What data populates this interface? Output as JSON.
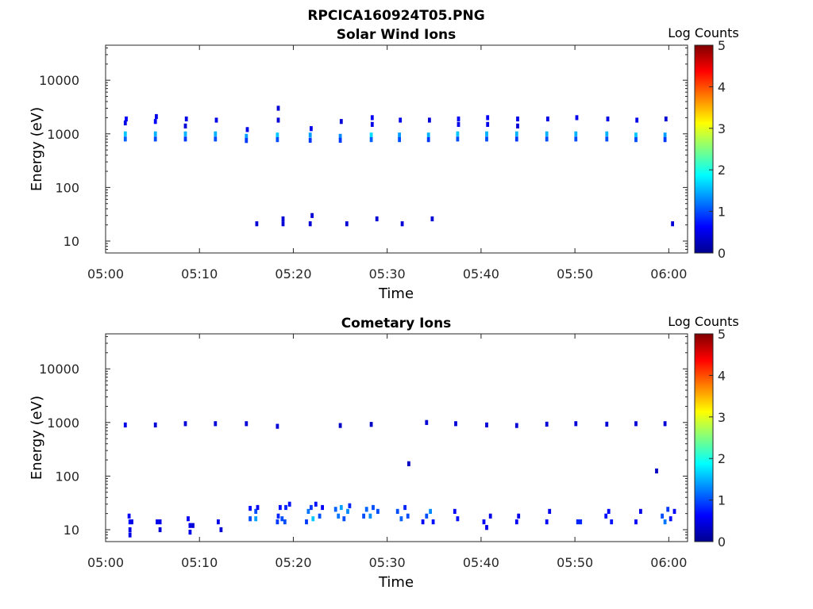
{
  "figure": {
    "title": "RPCICA160924T05.PNG"
  },
  "chart_data": [
    {
      "type": "heatmap",
      "title": "Solar Wind Ions",
      "xlabel": "Time",
      "ylabel": "Energy (eV)",
      "yscale": "log",
      "ylim": [
        6,
        45000
      ],
      "xlim_minutes": [
        0,
        62
      ],
      "x_ticks": [
        "05:00",
        "05:10",
        "05:20",
        "05:30",
        "05:40",
        "05:50",
        "06:00"
      ],
      "x_tick_minutes": [
        0,
        10,
        20,
        30,
        40,
        50,
        60
      ],
      "y_ticks": [
        "10",
        "100",
        "1000",
        "10000"
      ],
      "y_tick_values": [
        10,
        100,
        1000,
        10000
      ],
      "colorbar": {
        "label": "Log Counts",
        "range": [
          0,
          5
        ],
        "ticks": [
          "0",
          "1",
          "2",
          "3",
          "4",
          "5"
        ]
      },
      "grid": false,
      "cells": [
        [
          2.1,
          1000,
          1.6
        ],
        [
          2.1,
          800,
          1.1
        ],
        [
          2.2,
          1900,
          0.6
        ],
        [
          2.1,
          1600,
          0.5
        ],
        [
          5.3,
          1000,
          1.5
        ],
        [
          5.3,
          800,
          1.0
        ],
        [
          5.4,
          2100,
          0.5
        ],
        [
          5.3,
          1700,
          0.6
        ],
        [
          8.5,
          1000,
          1.5
        ],
        [
          8.5,
          800,
          0.9
        ],
        [
          8.6,
          1900,
          0.5
        ],
        [
          8.5,
          1400,
          0.4
        ],
        [
          11.7,
          1000,
          1.5
        ],
        [
          11.7,
          800,
          1.0
        ],
        [
          11.8,
          1800,
          0.5
        ],
        [
          15.0,
          900,
          1.4
        ],
        [
          15.0,
          750,
          0.9
        ],
        [
          15.1,
          1200,
          0.5
        ],
        [
          18.3,
          950,
          1.6
        ],
        [
          18.3,
          780,
          1.0
        ],
        [
          18.4,
          1800,
          0.4
        ],
        [
          18.4,
          3000,
          0.4
        ],
        [
          21.8,
          950,
          1.4
        ],
        [
          21.8,
          760,
          0.9
        ],
        [
          21.9,
          1250,
          0.5
        ],
        [
          25.0,
          900,
          1.3
        ],
        [
          25.0,
          760,
          0.9
        ],
        [
          25.1,
          1700,
          0.4
        ],
        [
          28.3,
          950,
          1.7
        ],
        [
          28.3,
          780,
          1.1
        ],
        [
          28.4,
          2000,
          0.6
        ],
        [
          28.4,
          1500,
          0.5
        ],
        [
          31.3,
          950,
          1.4
        ],
        [
          31.3,
          780,
          1.0
        ],
        [
          31.4,
          1800,
          0.5
        ],
        [
          34.4,
          950,
          1.5
        ],
        [
          34.4,
          780,
          0.9
        ],
        [
          34.5,
          1800,
          0.4
        ],
        [
          37.5,
          1000,
          1.6
        ],
        [
          37.5,
          800,
          1.0
        ],
        [
          37.6,
          1900,
          0.6
        ],
        [
          37.6,
          1500,
          0.5
        ],
        [
          40.6,
          1000,
          1.5
        ],
        [
          40.6,
          800,
          1.0
        ],
        [
          40.7,
          2000,
          0.6
        ],
        [
          40.7,
          1500,
          0.5
        ],
        [
          43.8,
          1000,
          1.5
        ],
        [
          43.8,
          800,
          0.9
        ],
        [
          43.9,
          1900,
          0.5
        ],
        [
          43.9,
          1400,
          0.4
        ],
        [
          47.0,
          1000,
          1.5
        ],
        [
          47.0,
          800,
          1.0
        ],
        [
          47.1,
          1900,
          0.5
        ],
        [
          50.1,
          1000,
          1.5
        ],
        [
          50.1,
          800,
          1.0
        ],
        [
          50.2,
          2000,
          0.5
        ],
        [
          53.4,
          1000,
          1.5
        ],
        [
          53.4,
          800,
          1.0
        ],
        [
          53.5,
          1900,
          0.5
        ],
        [
          56.5,
          950,
          1.6
        ],
        [
          56.5,
          780,
          1.0
        ],
        [
          56.6,
          1800,
          0.5
        ],
        [
          59.6,
          950,
          1.4
        ],
        [
          59.6,
          780,
          0.9
        ],
        [
          59.7,
          1900,
          0.4
        ],
        [
          16.1,
          21,
          0.4
        ],
        [
          18.9,
          26,
          0.4
        ],
        [
          18.9,
          21,
          0.4
        ],
        [
          21.8,
          21,
          0.4
        ],
        [
          22.0,
          30,
          0.4
        ],
        [
          25.7,
          21,
          0.4
        ],
        [
          28.9,
          26,
          0.4
        ],
        [
          31.6,
          21,
          0.4
        ],
        [
          34.8,
          26,
          0.4
        ],
        [
          60.4,
          21,
          0.4
        ]
      ]
    },
    {
      "type": "heatmap",
      "title": "Cometary Ions",
      "xlabel": "Time",
      "ylabel": "Energy (eV)",
      "yscale": "log",
      "ylim": [
        6,
        45000
      ],
      "xlim_minutes": [
        0,
        62
      ],
      "x_ticks": [
        "05:00",
        "05:10",
        "05:20",
        "05:30",
        "05:40",
        "05:50",
        "06:00"
      ],
      "x_tick_minutes": [
        0,
        10,
        20,
        30,
        40,
        50,
        60
      ],
      "y_ticks": [
        "10",
        "100",
        "1000",
        "10000"
      ],
      "y_tick_values": [
        10,
        100,
        1000,
        10000
      ],
      "colorbar": {
        "label": "Log Counts",
        "range": [
          0,
          5
        ],
        "ticks": [
          "0",
          "1",
          "2",
          "3",
          "4",
          "5"
        ]
      },
      "grid": false,
      "cells": [
        [
          2.1,
          900,
          0.5
        ],
        [
          5.3,
          900,
          0.4
        ],
        [
          8.5,
          950,
          0.4
        ],
        [
          11.7,
          950,
          0.4
        ],
        [
          15.0,
          950,
          0.4
        ],
        [
          18.3,
          850,
          0.4
        ],
        [
          25.0,
          880,
          0.3
        ],
        [
          28.3,
          920,
          0.3
        ],
        [
          34.2,
          1000,
          0.4
        ],
        [
          37.3,
          950,
          0.4
        ],
        [
          40.6,
          900,
          0.4
        ],
        [
          43.8,
          880,
          0.4
        ],
        [
          47.0,
          930,
          0.4
        ],
        [
          50.1,
          950,
          0.4
        ],
        [
          53.4,
          930,
          0.4
        ],
        [
          56.5,
          950,
          0.4
        ],
        [
          59.6,
          950,
          0.4
        ],
        [
          32.3,
          170,
          0.3
        ],
        [
          58.7,
          125,
          0.3
        ],
        [
          2.5,
          18,
          0.6
        ],
        [
          2.6,
          14,
          0.7
        ],
        [
          2.6,
          10,
          0.5
        ],
        [
          2.6,
          8,
          0.5
        ],
        [
          2.8,
          14,
          0.5
        ],
        [
          5.5,
          14,
          0.5
        ],
        [
          5.8,
          14,
          0.5
        ],
        [
          5.8,
          10,
          0.4
        ],
        [
          8.8,
          16,
          0.6
        ],
        [
          9.0,
          12,
          0.5
        ],
        [
          9.0,
          9,
          0.5
        ],
        [
          9.3,
          12,
          0.4
        ],
        [
          12.0,
          14,
          0.5
        ],
        [
          12.3,
          10,
          0.4
        ],
        [
          15.4,
          16,
          1.0
        ],
        [
          15.4,
          25,
          0.7
        ],
        [
          16.0,
          16,
          1.4
        ],
        [
          16.0,
          22,
          1.0
        ],
        [
          16.2,
          26,
          0.6
        ],
        [
          18.3,
          14,
          0.9
        ],
        [
          18.4,
          18,
          0.8
        ],
        [
          18.6,
          26,
          0.7
        ],
        [
          18.8,
          16,
          1.0
        ],
        [
          19.1,
          14,
          1.0
        ],
        [
          19.2,
          26,
          0.8
        ],
        [
          19.6,
          30,
          0.7
        ],
        [
          21.4,
          14,
          0.9
        ],
        [
          21.6,
          22,
          1.2
        ],
        [
          21.9,
          26,
          0.9
        ],
        [
          22.1,
          16,
          1.6
        ],
        [
          22.4,
          30,
          0.7
        ],
        [
          22.8,
          18,
          1.0
        ],
        [
          23.1,
          26,
          0.6
        ],
        [
          24.5,
          24,
          1.1
        ],
        [
          24.8,
          18,
          1.2
        ],
        [
          25.1,
          26,
          1.4
        ],
        [
          25.4,
          16,
          1.0
        ],
        [
          25.8,
          22,
          1.3
        ],
        [
          26.0,
          28,
          0.8
        ],
        [
          27.5,
          18,
          1.0
        ],
        [
          27.8,
          24,
          1.1
        ],
        [
          28.2,
          18,
          1.3
        ],
        [
          28.5,
          26,
          1.0
        ],
        [
          29.0,
          22,
          1.0
        ],
        [
          31.1,
          22,
          1.0
        ],
        [
          31.5,
          16,
          1.1
        ],
        [
          31.9,
          26,
          0.8
        ],
        [
          32.2,
          18,
          1.0
        ],
        [
          33.8,
          14,
          0.6
        ],
        [
          34.2,
          18,
          1.0
        ],
        [
          34.6,
          22,
          1.3
        ],
        [
          34.9,
          14,
          0.7
        ],
        [
          37.2,
          22,
          0.6
        ],
        [
          37.5,
          16,
          0.7
        ],
        [
          40.3,
          14,
          0.6
        ],
        [
          40.6,
          11,
          0.5
        ],
        [
          41.0,
          18,
          0.5
        ],
        [
          43.8,
          14,
          0.6
        ],
        [
          44.0,
          18,
          0.5
        ],
        [
          47.0,
          14,
          0.6
        ],
        [
          47.3,
          22,
          0.5
        ],
        [
          50.3,
          14,
          0.8
        ],
        [
          50.6,
          14,
          0.8
        ],
        [
          53.3,
          18,
          0.7
        ],
        [
          53.6,
          22,
          0.6
        ],
        [
          53.9,
          14,
          0.7
        ],
        [
          56.5,
          14,
          0.6
        ],
        [
          57.0,
          22,
          0.5
        ],
        [
          59.3,
          18,
          1.0
        ],
        [
          59.6,
          14,
          1.2
        ],
        [
          59.9,
          24,
          0.9
        ],
        [
          60.2,
          16,
          0.7
        ],
        [
          60.6,
          22,
          0.6
        ]
      ]
    }
  ]
}
